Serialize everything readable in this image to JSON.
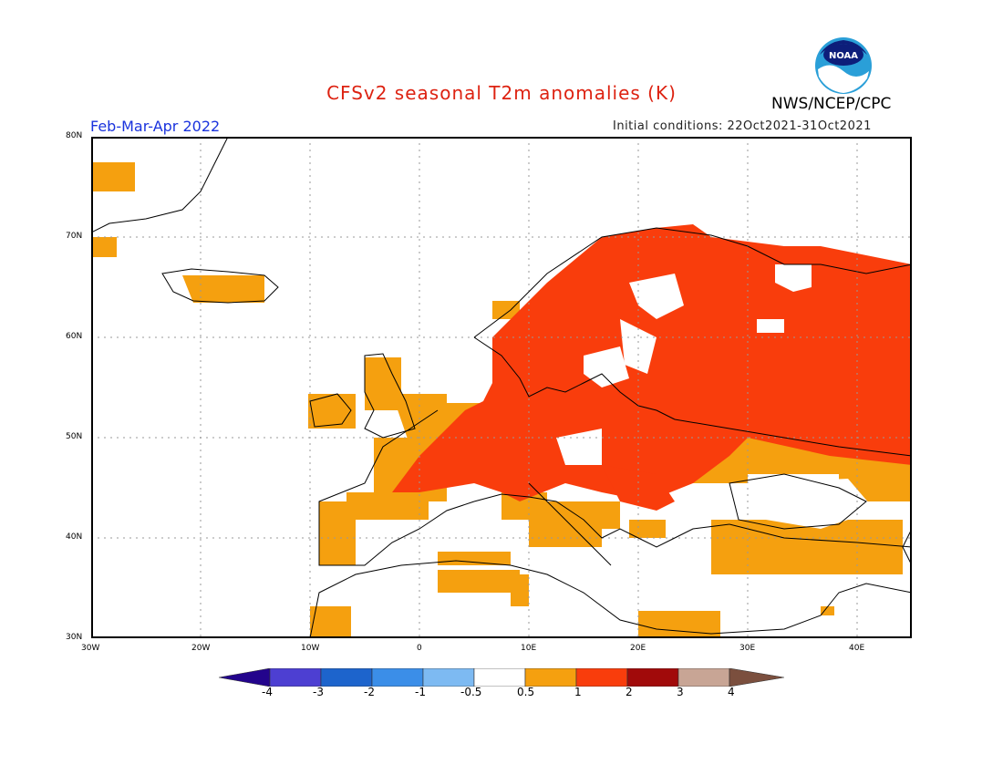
{
  "title": "CFSv2 seasonal T2m anomalies (K)",
  "agency": "NWS/NCEP/CPC",
  "logo_text": "NOAA",
  "period": "Feb-Mar-Apr 2022",
  "initial_conditions": "Initial conditions: 22Oct2021-31Oct2021",
  "colors": {
    "title": "#dd2211",
    "period": "#1a33dd",
    "land_outline": "#000000",
    "grid": "#999999"
  },
  "map": {
    "lon_range": [
      -30,
      45
    ],
    "lat_range": [
      30,
      80
    ],
    "lat_ticks": [
      "30N",
      "40N",
      "50N",
      "60N",
      "70N",
      "80N"
    ],
    "lon_ticks": [
      "30W",
      "20W",
      "10W",
      "0",
      "10E",
      "20E",
      "30E",
      "40E"
    ]
  },
  "colorbar": {
    "labels": [
      "-4",
      "-3",
      "-2",
      "-1",
      "-0.5",
      "0.5",
      "1",
      "2",
      "3",
      "4"
    ],
    "colors": [
      "#23048c",
      "#4d3fd2",
      "#1d64cc",
      "#3b8ee8",
      "#7dbaf2",
      "#ffffff",
      "#f5a00f",
      "#f93d0c",
      "#a10a0a",
      "#c8a595",
      "#7b4f3e"
    ]
  }
}
